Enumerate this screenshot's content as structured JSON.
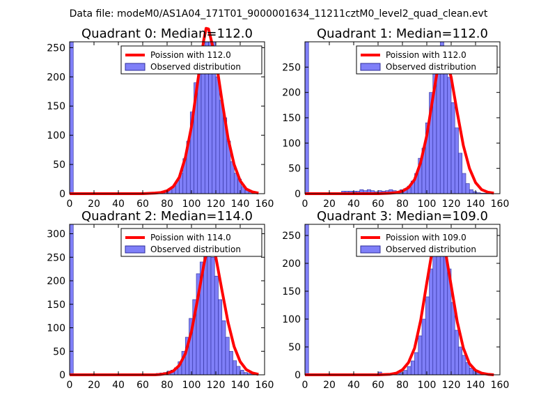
{
  "figure_title": "Data file: modeM0/AS1A04_171T01_9000001634_11211cztM0_level2_quad_clean.evt",
  "colors": {
    "bar_fill": "#7f7ff8",
    "bar_edge": "#2c2c9a",
    "curve": "#ff0000"
  },
  "chart_data": [
    {
      "type": "bar",
      "title": "Quadrant 0: Median=112.0",
      "xlim": [
        0,
        160
      ],
      "ylim": [
        0,
        260
      ],
      "xticks": [
        0,
        20,
        40,
        60,
        80,
        100,
        120,
        140,
        160
      ],
      "yticks": [
        0,
        50,
        100,
        150,
        200,
        250
      ],
      "legend": {
        "line_label": "Poission with 112.0",
        "bar_label": "Observed distribution"
      },
      "poisson_mean": 112.0,
      "bin_width": 3,
      "bin_starts": [
        0,
        72,
        75,
        78,
        81,
        84,
        87,
        90,
        93,
        96,
        99,
        102,
        105,
        108,
        111,
        114,
        117,
        120,
        123,
        126,
        129,
        132,
        135,
        138,
        141,
        144,
        147,
        150
      ],
      "values": [
        260,
        2,
        3,
        6,
        9,
        13,
        22,
        35,
        60,
        90,
        140,
        190,
        215,
        240,
        270,
        275,
        260,
        200,
        160,
        130,
        90,
        55,
        35,
        25,
        12,
        6,
        3,
        2
      ],
      "curve_x": [
        0,
        60,
        70,
        75,
        80,
        85,
        90,
        95,
        100,
        105,
        110,
        112,
        114,
        120,
        125,
        130,
        135,
        140,
        145,
        150,
        155
      ],
      "curve_y": [
        0,
        0,
        1,
        2,
        5,
        12,
        28,
        62,
        115,
        190,
        262,
        283,
        282,
        230,
        160,
        95,
        50,
        22,
        8,
        3,
        1
      ]
    },
    {
      "type": "bar",
      "title": "Quadrant 1: Median=112.0",
      "xlim": [
        0,
        160
      ],
      "ylim": [
        0,
        300
      ],
      "xticks": [
        0,
        20,
        40,
        60,
        80,
        100,
        120,
        140,
        160
      ],
      "yticks": [
        0,
        50,
        100,
        150,
        200,
        250
      ],
      "legend": {
        "line_label": "Poission with 112.0",
        "bar_label": "Observed distribution"
      },
      "poisson_mean": 112.0,
      "bin_width": 3,
      "bin_starts": [
        0,
        30,
        33,
        36,
        39,
        42,
        45,
        48,
        51,
        54,
        57,
        60,
        63,
        66,
        69,
        72,
        75,
        78,
        81,
        84,
        87,
        90,
        93,
        96,
        99,
        102,
        105,
        108,
        111,
        114,
        117,
        120,
        123,
        126,
        129,
        132,
        135,
        138,
        141,
        144,
        147
      ],
      "values": [
        300,
        5,
        5,
        5,
        5,
        5,
        8,
        6,
        8,
        6,
        4,
        6,
        5,
        6,
        8,
        6,
        4,
        8,
        10,
        15,
        25,
        40,
        70,
        90,
        140,
        200,
        240,
        270,
        300,
        260,
        230,
        180,
        130,
        80,
        40,
        20,
        8,
        4,
        2,
        1,
        1
      ],
      "curve_x": [
        0,
        60,
        70,
        75,
        80,
        85,
        90,
        95,
        100,
        105,
        110,
        112,
        114,
        120,
        125,
        130,
        135,
        140,
        145,
        150,
        155
      ],
      "curve_y": [
        0,
        0,
        1,
        2,
        5,
        12,
        28,
        62,
        115,
        190,
        262,
        283,
        282,
        230,
        160,
        95,
        50,
        22,
        8,
        3,
        1
      ]
    },
    {
      "type": "bar",
      "title": "Quadrant 2: Median=114.0",
      "xlim": [
        0,
        160
      ],
      "ylim": [
        0,
        320
      ],
      "xticks": [
        0,
        20,
        40,
        60,
        80,
        100,
        120,
        140,
        160
      ],
      "yticks": [
        0,
        50,
        100,
        150,
        200,
        250,
        300
      ],
      "legend": {
        "line_label": "Poission with 114.0",
        "bar_label": "Observed distribution"
      },
      "poisson_mean": 114.0,
      "bin_width": 3,
      "bin_starts": [
        0,
        68,
        71,
        74,
        77,
        80,
        83,
        86,
        89,
        92,
        95,
        98,
        101,
        104,
        107,
        110,
        113,
        116,
        119,
        122,
        125,
        128,
        131,
        134,
        137,
        140,
        143,
        146,
        149,
        152
      ],
      "values": [
        320,
        2,
        3,
        4,
        5,
        8,
        10,
        15,
        28,
        50,
        80,
        120,
        160,
        215,
        240,
        285,
        295,
        250,
        210,
        160,
        115,
        80,
        50,
        30,
        18,
        10,
        5,
        3,
        2,
        1
      ],
      "curve_x": [
        0,
        60,
        70,
        75,
        80,
        85,
        90,
        95,
        100,
        105,
        110,
        114,
        118,
        120,
        125,
        130,
        135,
        140,
        145,
        150,
        155
      ],
      "curve_y": [
        0,
        0,
        0,
        1,
        3,
        8,
        20,
        45,
        92,
        160,
        232,
        280,
        265,
        250,
        180,
        112,
        60,
        28,
        11,
        4,
        1
      ]
    },
    {
      "type": "bar",
      "title": "Quadrant 3: Median=109.0",
      "xlim": [
        0,
        160
      ],
      "ylim": [
        0,
        270
      ],
      "xticks": [
        0,
        20,
        40,
        60,
        80,
        100,
        120,
        140,
        160
      ],
      "yticks": [
        0,
        50,
        100,
        150,
        200,
        250
      ],
      "legend": {
        "line_label": "Poission with 109.0",
        "bar_label": "Observed distribution"
      },
      "poisson_mean": 109.0,
      "bin_width": 3,
      "bin_starts": [
        0,
        60,
        75,
        78,
        81,
        84,
        87,
        90,
        93,
        96,
        99,
        102,
        105,
        108,
        111,
        114,
        117,
        120,
        123,
        126,
        129,
        132,
        135,
        138,
        141,
        144,
        147
      ],
      "values": [
        270,
        5,
        2,
        4,
        8,
        15,
        25,
        40,
        70,
        100,
        140,
        190,
        225,
        240,
        260,
        220,
        190,
        130,
        80,
        50,
        35,
        22,
        12,
        8,
        5,
        3,
        2
      ],
      "curve_x": [
        0,
        60,
        70,
        75,
        80,
        85,
        90,
        95,
        100,
        105,
        109,
        112,
        115,
        120,
        125,
        130,
        135,
        140,
        145,
        150,
        155
      ],
      "curve_y": [
        0,
        0,
        1,
        3,
        9,
        22,
        48,
        98,
        165,
        230,
        258,
        250,
        225,
        160,
        95,
        48,
        20,
        8,
        3,
        1,
        0
      ]
    }
  ]
}
